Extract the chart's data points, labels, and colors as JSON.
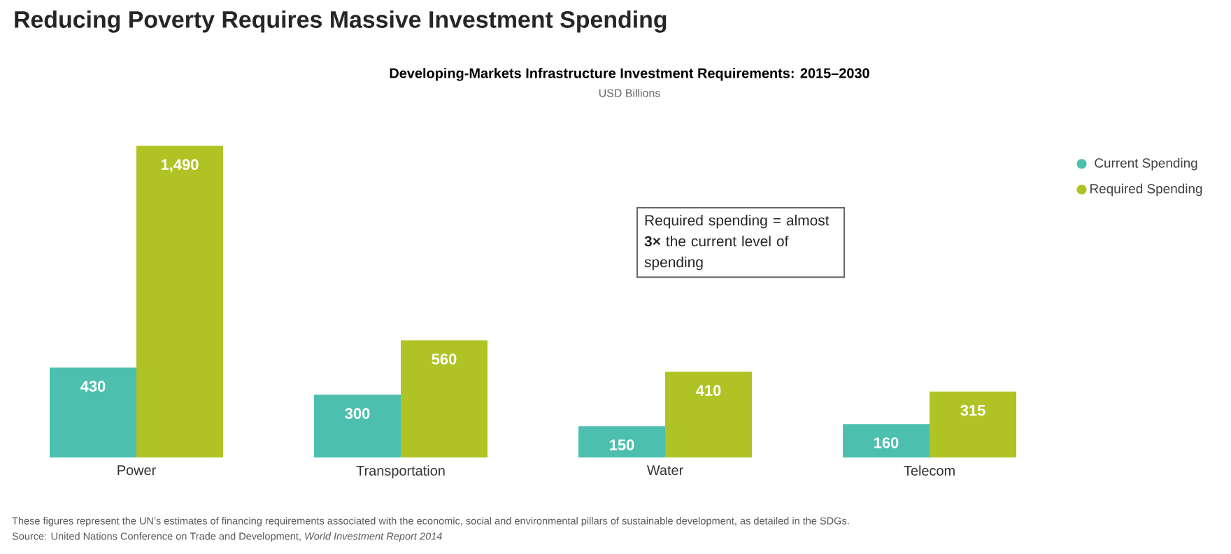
{
  "chart_data": {
    "type": "bar",
    "title": "Reducing Poverty Requires Massive Investment Spending",
    "subtitle": "Developing-Markets Infrastructure Investment Requirements: 2015–2030",
    "ylabel": "USD Billions",
    "categories": [
      "Power",
      "Transportation",
      "Water",
      "Telecom"
    ],
    "series": [
      {
        "name": "Current Spending",
        "color": "#4dbfae",
        "values": [
          430,
          300,
          150,
          160
        ],
        "value_labels": [
          "430",
          "300",
          "150",
          "160"
        ]
      },
      {
        "name": "Required Spending",
        "color": "#afc424",
        "values": [
          1490,
          560,
          410,
          315
        ],
        "value_labels": [
          "1,490",
          "560",
          "410",
          "315"
        ]
      }
    ],
    "legend": "top right",
    "annotations": [
      "Required spending = almost **3×** the current level of spending",
      "These figures represent the UN’s estimates of financing requirements associated with the economic, social and environmental pillars of sustainable development, as detailed in the SDGs.",
      "Source: United Nations Conference on Trade and Development, *World Investment Report 2014*"
    ]
  }
}
